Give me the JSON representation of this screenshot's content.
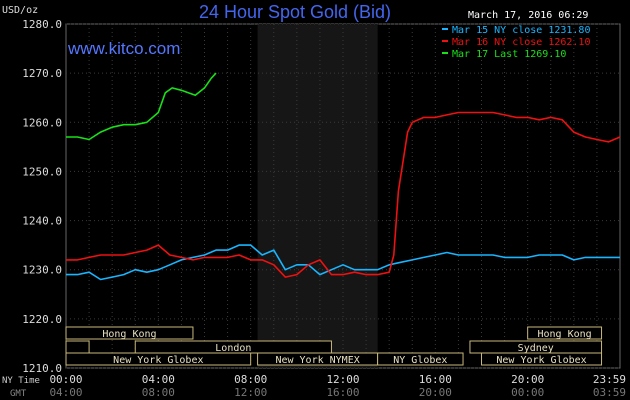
{
  "header": {
    "title": "24 Hour Spot Gold (Bid)",
    "unit_label": "USD/oz",
    "date_time": "March 17, 2016 06:29",
    "watermark": "www.kitco.com"
  },
  "legend": [
    {
      "text": "Mar 15 NY close 1231.80",
      "color": "#19b5ff"
    },
    {
      "text": "Mar 16 NY close 1262.10",
      "color": "#ee1111"
    },
    {
      "text": "Mar 17 Last 1269.10",
      "color": "#19e019"
    }
  ],
  "bottom_labels": {
    "ny_time": "NY Time",
    "gmt": "GMT"
  },
  "x_ticks_ny": [
    "00:00",
    "04:00",
    "08:00",
    "12:00",
    "16:00",
    "20:00",
    "23:59"
  ],
  "x_ticks_gmt": [
    "04:00",
    "08:00",
    "12:00",
    "16:00",
    "20:00",
    "00:00",
    "03:59"
  ],
  "markets": [
    {
      "name": "Hong Kong",
      "start": 0.0,
      "end": 5.5,
      "row": 0
    },
    {
      "name": "Hong Kong",
      "start": 20.0,
      "end": 23.2,
      "row": 0
    },
    {
      "name": "London",
      "start": 3.0,
      "end": 11.5,
      "row": 1
    },
    {
      "name": "",
      "start": 0.0,
      "end": 1.0,
      "row": 1
    },
    {
      "name": "Sydney",
      "start": 17.5,
      "end": 23.2,
      "row": 1
    },
    {
      "name": "New York Globex",
      "start": 0.0,
      "end": 8.0,
      "row": 2
    },
    {
      "name": "New York NYMEX",
      "start": 8.3,
      "end": 13.5,
      "row": 2
    },
    {
      "name": "NY Globex",
      "start": 13.5,
      "end": 17.2,
      "row": 2
    },
    {
      "name": "New York Globex",
      "start": 18.0,
      "end": 23.2,
      "row": 2
    }
  ],
  "shaded_region": {
    "start": 8.3,
    "end": 13.5
  },
  "chart_data": {
    "type": "line",
    "title": "24 Hour Spot Gold (Bid)",
    "ylabel": "USD/oz",
    "xlabel": "NY Time",
    "ylim": [
      1210,
      1280
    ],
    "xlim_hours": [
      0,
      24
    ],
    "y_ticks": [
      1210.0,
      1220.0,
      1230.0,
      1240.0,
      1250.0,
      1260.0,
      1270.0,
      1280.0
    ],
    "y_tick_labels": [
      "1210.0",
      "1220.0",
      "1230.0",
      "1240.0",
      "1250.0",
      "1260.0",
      "1270.0",
      "1280.0"
    ],
    "grid": true,
    "legend_position": "top-right",
    "series": [
      {
        "name": "Mar 15 NY close 1231.80",
        "color": "#19b5ff",
        "x": [
          0,
          0.5,
          1,
          1.5,
          2,
          2.5,
          3,
          3.5,
          4,
          4.5,
          5,
          5.5,
          6,
          6.5,
          7,
          7.5,
          8,
          8.5,
          9,
          9.5,
          10,
          10.5,
          11,
          11.5,
          12,
          12.5,
          13,
          13.5,
          14,
          14.5,
          15,
          15.5,
          16,
          16.5,
          17,
          17.5,
          18,
          18.5,
          19,
          19.5,
          20,
          20.5,
          21,
          21.5,
          22,
          22.5,
          23,
          23.5,
          24
        ],
        "y": [
          1229,
          1229,
          1229.5,
          1228,
          1228.5,
          1229,
          1230,
          1229.5,
          1230,
          1231,
          1232,
          1232.5,
          1233,
          1234,
          1234,
          1235,
          1235,
          1233,
          1234,
          1230,
          1231,
          1231,
          1229,
          1230,
          1231,
          1230,
          1230,
          1230,
          1231,
          1231.5,
          1232,
          1232.5,
          1233,
          1233.5,
          1233,
          1233,
          1233,
          1233,
          1232.5,
          1232.5,
          1232.5,
          1233,
          1233,
          1233,
          1232,
          1232.5,
          1232.5,
          1232.5,
          1232.5
        ]
      },
      {
        "name": "Mar 16 NY close 1262.10",
        "color": "#ee1111",
        "x": [
          0,
          0.5,
          1,
          1.5,
          2,
          2.5,
          3,
          3.5,
          4,
          4.5,
          5,
          5.5,
          6,
          6.5,
          7,
          7.5,
          8,
          8.5,
          9,
          9.5,
          10,
          10.5,
          11,
          11.5,
          12,
          12.5,
          13,
          13.5,
          14,
          14.2,
          14.4,
          14.6,
          14.8,
          15,
          15.5,
          16,
          16.5,
          17,
          17.5,
          18,
          18.5,
          19,
          19.5,
          20,
          20.5,
          21,
          21.5,
          22,
          22.5,
          23,
          23.5,
          24
        ],
        "y": [
          1232,
          1232,
          1232.5,
          1233,
          1233,
          1233,
          1233.5,
          1234,
          1235,
          1233,
          1232.5,
          1232,
          1232.5,
          1232.5,
          1232.5,
          1233,
          1232,
          1232,
          1231,
          1228.5,
          1229,
          1231,
          1232,
          1229,
          1229,
          1229.5,
          1229,
          1229,
          1229.5,
          1233,
          1246,
          1252,
          1258,
          1260,
          1261,
          1261,
          1261.5,
          1262,
          1262,
          1262,
          1262,
          1261.5,
          1261,
          1261,
          1260.5,
          1261,
          1260.5,
          1258,
          1257,
          1256.5,
          1256,
          1257
        ]
      },
      {
        "name": "Mar 17 Last 1269.10",
        "color": "#19e019",
        "x": [
          0,
          0.5,
          1,
          1.5,
          2,
          2.5,
          3,
          3.5,
          4,
          4.3,
          4.6,
          5,
          5.3,
          5.6,
          6,
          6.3,
          6.5
        ],
        "y": [
          1257,
          1257,
          1256.5,
          1258,
          1259,
          1259.5,
          1259.5,
          1260,
          1262,
          1266,
          1267,
          1266.5,
          1266,
          1265.5,
          1267,
          1269,
          1270
        ]
      }
    ]
  }
}
